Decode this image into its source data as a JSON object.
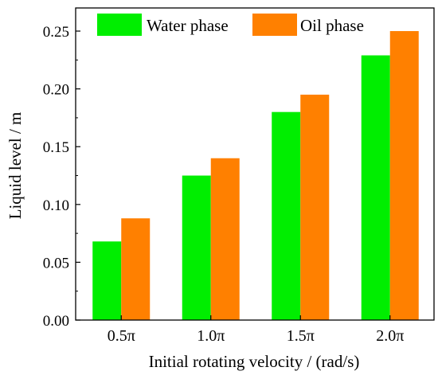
{
  "chart_data": {
    "type": "bar",
    "title": "",
    "xlabel": "Initial rotating velocity / (rad/s)",
    "ylabel": "Liquid level / m",
    "categories": [
      "0.5π",
      "1.0π",
      "1.5π",
      "2.0π"
    ],
    "series": [
      {
        "name": "Water phase",
        "color": "#00ee00",
        "values": [
          0.068,
          0.125,
          0.18,
          0.229
        ]
      },
      {
        "name": "Oil phase",
        "color": "#ff8000",
        "values": [
          0.088,
          0.14,
          0.195,
          0.25
        ]
      }
    ],
    "ylim": [
      0,
      0.27
    ],
    "yticks": [
      "0.00",
      "0.05",
      "0.10",
      "0.15",
      "0.20",
      "0.25"
    ],
    "legend_position": "top-left",
    "grid": false
  }
}
